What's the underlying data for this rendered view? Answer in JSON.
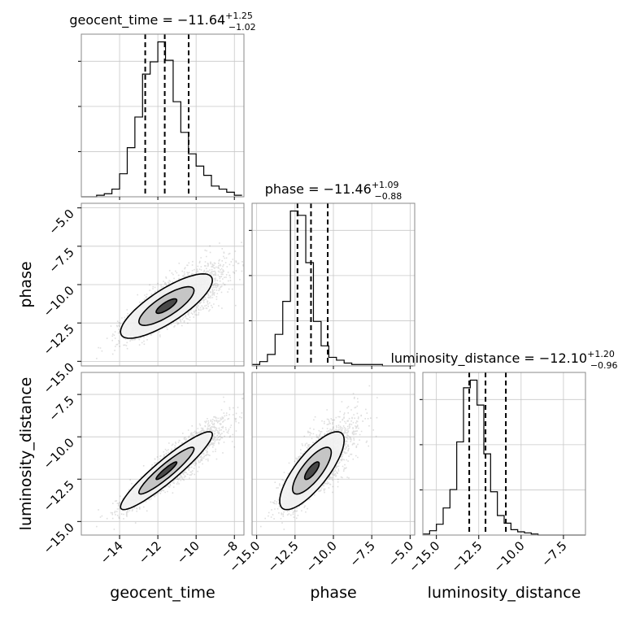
{
  "chart_data": {
    "type": "corner",
    "parameters": [
      "geocent_time",
      "phase",
      "luminosity_distance"
    ],
    "axis_labels": [
      "geocent_time",
      "phase",
      "luminosity_distance"
    ],
    "titles": [
      {
        "name": "geocent_time",
        "median": "−11.64",
        "upper": "+1.25",
        "lower": "−1.02"
      },
      {
        "name": "phase",
        "median": "−11.46",
        "upper": "+1.09",
        "lower": "−0.88"
      },
      {
        "name": "luminosity_distance",
        "median": "−12.10",
        "upper": "+1.20",
        "lower": "−0.96"
      }
    ],
    "ranges": [
      [
        -16.0,
        -7.5
      ],
      [
        -15.3,
        -4.7
      ],
      [
        -15.8,
        -6.2
      ]
    ],
    "ticks": [
      {
        "values": [
          -14,
          -12,
          -10,
          -8
        ],
        "labels": [
          "−14",
          "−12",
          "−10",
          "−8"
        ]
      },
      {
        "values": [
          -15,
          -12.5,
          -10,
          -7.5,
          -5
        ],
        "labels": [
          "−15.0",
          "−12.5",
          "−10.0",
          "−7.5",
          "−5.0"
        ]
      },
      {
        "values": [
          -15,
          -12.5,
          -10,
          -7.5
        ],
        "labels": [
          "−15.0",
          "−12.5",
          "−10.0",
          "−7.5"
        ]
      }
    ],
    "quantiles": [
      [
        -12.66,
        -11.64,
        -10.39
      ],
      [
        -12.34,
        -11.46,
        -10.37
      ],
      [
        -13.06,
        -12.1,
        -10.9
      ]
    ],
    "histograms": [
      {
        "bin_edges_start": -16.0,
        "bin_width": 0.4,
        "counts": [
          0,
          0,
          1,
          2,
          5,
          15,
          32,
          52,
          80,
          88,
          101,
          89,
          62,
          42,
          28,
          20,
          14,
          7,
          5,
          3,
          1
        ]
      },
      {
        "bin_edges_start": -15.3,
        "bin_width": 0.5,
        "counts": [
          1,
          3,
          8,
          22,
          45,
          108,
          105,
          72,
          31,
          14,
          6,
          4,
          2,
          1,
          1,
          1,
          1,
          0,
          0,
          0,
          0
        ]
      },
      {
        "bin_edges_start": -15.8,
        "bin_width": 0.4,
        "counts": [
          1,
          4,
          10,
          25,
          42,
          86,
          136,
          143,
          120,
          75,
          40,
          18,
          11,
          5,
          3,
          2,
          1,
          0,
          0,
          0,
          0,
          0,
          0,
          0
        ]
      }
    ],
    "samples_2d": {
      "n_points": 3000,
      "means": [
        -11.55,
        -11.4,
        -12.0
      ],
      "std": [
        1.2,
        1.05,
        1.15
      ],
      "correlations": {
        "0_1": 0.8,
        "0_2": 0.93,
        "1_2": 0.78
      }
    },
    "grid": true
  }
}
